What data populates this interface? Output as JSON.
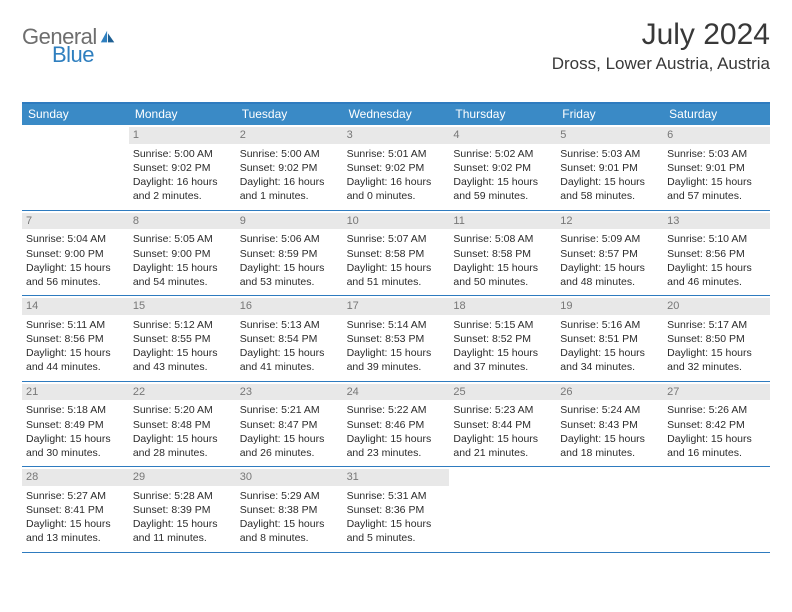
{
  "logo": {
    "general": "General",
    "blue": "Blue"
  },
  "title": "July 2024",
  "location": "Dross, Lower Austria, Austria",
  "colors": {
    "header_bar": "#3a8ac6",
    "rule": "#2e7bbf",
    "daynum_bg": "#e8e8e8",
    "daynum_fg": "#777777",
    "text": "#2b2b2b",
    "logo_grey": "#6e6e6e",
    "logo_blue": "#2f7fbf"
  },
  "day_names": [
    "Sunday",
    "Monday",
    "Tuesday",
    "Wednesday",
    "Thursday",
    "Friday",
    "Saturday"
  ],
  "weeks": [
    [
      null,
      {
        "n": "1",
        "sr": "5:00 AM",
        "ss": "9:02 PM",
        "dl1": "Daylight: 16 hours",
        "dl2": "and 2 minutes."
      },
      {
        "n": "2",
        "sr": "5:00 AM",
        "ss": "9:02 PM",
        "dl1": "Daylight: 16 hours",
        "dl2": "and 1 minutes."
      },
      {
        "n": "3",
        "sr": "5:01 AM",
        "ss": "9:02 PM",
        "dl1": "Daylight: 16 hours",
        "dl2": "and 0 minutes."
      },
      {
        "n": "4",
        "sr": "5:02 AM",
        "ss": "9:02 PM",
        "dl1": "Daylight: 15 hours",
        "dl2": "and 59 minutes."
      },
      {
        "n": "5",
        "sr": "5:03 AM",
        "ss": "9:01 PM",
        "dl1": "Daylight: 15 hours",
        "dl2": "and 58 minutes."
      },
      {
        "n": "6",
        "sr": "5:03 AM",
        "ss": "9:01 PM",
        "dl1": "Daylight: 15 hours",
        "dl2": "and 57 minutes."
      }
    ],
    [
      {
        "n": "7",
        "sr": "5:04 AM",
        "ss": "9:00 PM",
        "dl1": "Daylight: 15 hours",
        "dl2": "and 56 minutes."
      },
      {
        "n": "8",
        "sr": "5:05 AM",
        "ss": "9:00 PM",
        "dl1": "Daylight: 15 hours",
        "dl2": "and 54 minutes."
      },
      {
        "n": "9",
        "sr": "5:06 AM",
        "ss": "8:59 PM",
        "dl1": "Daylight: 15 hours",
        "dl2": "and 53 minutes."
      },
      {
        "n": "10",
        "sr": "5:07 AM",
        "ss": "8:58 PM",
        "dl1": "Daylight: 15 hours",
        "dl2": "and 51 minutes."
      },
      {
        "n": "11",
        "sr": "5:08 AM",
        "ss": "8:58 PM",
        "dl1": "Daylight: 15 hours",
        "dl2": "and 50 minutes."
      },
      {
        "n": "12",
        "sr": "5:09 AM",
        "ss": "8:57 PM",
        "dl1": "Daylight: 15 hours",
        "dl2": "and 48 minutes."
      },
      {
        "n": "13",
        "sr": "5:10 AM",
        "ss": "8:56 PM",
        "dl1": "Daylight: 15 hours",
        "dl2": "and 46 minutes."
      }
    ],
    [
      {
        "n": "14",
        "sr": "5:11 AM",
        "ss": "8:56 PM",
        "dl1": "Daylight: 15 hours",
        "dl2": "and 44 minutes."
      },
      {
        "n": "15",
        "sr": "5:12 AM",
        "ss": "8:55 PM",
        "dl1": "Daylight: 15 hours",
        "dl2": "and 43 minutes."
      },
      {
        "n": "16",
        "sr": "5:13 AM",
        "ss": "8:54 PM",
        "dl1": "Daylight: 15 hours",
        "dl2": "and 41 minutes."
      },
      {
        "n": "17",
        "sr": "5:14 AM",
        "ss": "8:53 PM",
        "dl1": "Daylight: 15 hours",
        "dl2": "and 39 minutes."
      },
      {
        "n": "18",
        "sr": "5:15 AM",
        "ss": "8:52 PM",
        "dl1": "Daylight: 15 hours",
        "dl2": "and 37 minutes."
      },
      {
        "n": "19",
        "sr": "5:16 AM",
        "ss": "8:51 PM",
        "dl1": "Daylight: 15 hours",
        "dl2": "and 34 minutes."
      },
      {
        "n": "20",
        "sr": "5:17 AM",
        "ss": "8:50 PM",
        "dl1": "Daylight: 15 hours",
        "dl2": "and 32 minutes."
      }
    ],
    [
      {
        "n": "21",
        "sr": "5:18 AM",
        "ss": "8:49 PM",
        "dl1": "Daylight: 15 hours",
        "dl2": "and 30 minutes."
      },
      {
        "n": "22",
        "sr": "5:20 AM",
        "ss": "8:48 PM",
        "dl1": "Daylight: 15 hours",
        "dl2": "and 28 minutes."
      },
      {
        "n": "23",
        "sr": "5:21 AM",
        "ss": "8:47 PM",
        "dl1": "Daylight: 15 hours",
        "dl2": "and 26 minutes."
      },
      {
        "n": "24",
        "sr": "5:22 AM",
        "ss": "8:46 PM",
        "dl1": "Daylight: 15 hours",
        "dl2": "and 23 minutes."
      },
      {
        "n": "25",
        "sr": "5:23 AM",
        "ss": "8:44 PM",
        "dl1": "Daylight: 15 hours",
        "dl2": "and 21 minutes."
      },
      {
        "n": "26",
        "sr": "5:24 AM",
        "ss": "8:43 PM",
        "dl1": "Daylight: 15 hours",
        "dl2": "and 18 minutes."
      },
      {
        "n": "27",
        "sr": "5:26 AM",
        "ss": "8:42 PM",
        "dl1": "Daylight: 15 hours",
        "dl2": "and 16 minutes."
      }
    ],
    [
      {
        "n": "28",
        "sr": "5:27 AM",
        "ss": "8:41 PM",
        "dl1": "Daylight: 15 hours",
        "dl2": "and 13 minutes."
      },
      {
        "n": "29",
        "sr": "5:28 AM",
        "ss": "8:39 PM",
        "dl1": "Daylight: 15 hours",
        "dl2": "and 11 minutes."
      },
      {
        "n": "30",
        "sr": "5:29 AM",
        "ss": "8:38 PM",
        "dl1": "Daylight: 15 hours",
        "dl2": "and 8 minutes."
      },
      {
        "n": "31",
        "sr": "5:31 AM",
        "ss": "8:36 PM",
        "dl1": "Daylight: 15 hours",
        "dl2": "and 5 minutes."
      },
      null,
      null,
      null
    ]
  ],
  "labels": {
    "sunrise_prefix": "Sunrise: ",
    "sunset_prefix": "Sunset: "
  }
}
